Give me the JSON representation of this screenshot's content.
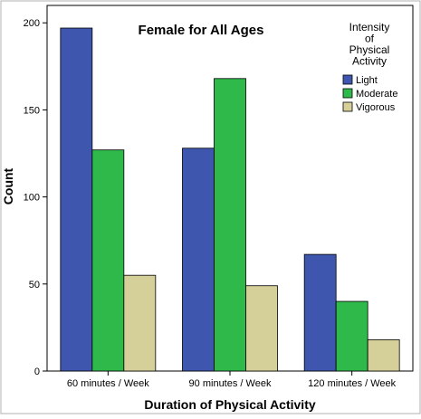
{
  "chart_data": {
    "type": "bar",
    "title": "Female for All Ages",
    "xlabel": "Duration of Physical Activity",
    "ylabel": "Count",
    "categories": [
      "60 minutes / Week",
      "90 minutes / Week",
      "120 minutes / Week"
    ],
    "series": [
      {
        "name": "Light",
        "values": [
          197,
          128,
          67
        ],
        "color": "#3e56ae"
      },
      {
        "name": "Moderate",
        "values": [
          127,
          168,
          40
        ],
        "color": "#2eb94a"
      },
      {
        "name": "Vigorous",
        "values": [
          55,
          49,
          18
        ],
        "color": "#d5cf9a"
      }
    ],
    "ylim": [
      0,
      210
    ],
    "yticks": [
      0,
      50,
      100,
      150,
      200
    ],
    "legend": {
      "title_lines": [
        "Intensity",
        "of",
        "Physical",
        "Activity"
      ],
      "placement": "top-right"
    },
    "grid": false
  }
}
